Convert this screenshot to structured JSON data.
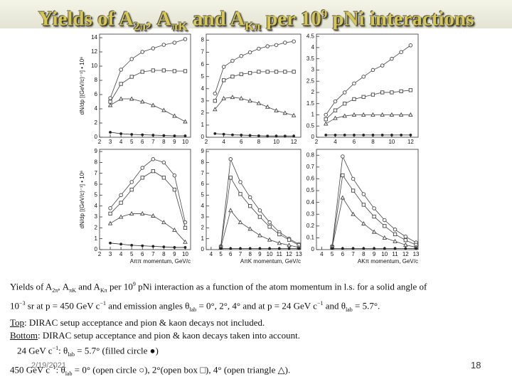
{
  "title": [
    "Yields of A",
    "2π",
    ", A",
    "πK",
    " and A",
    "Kπ",
    " per 10",
    "9",
    " pNi interactions"
  ],
  "chart_data": [
    {
      "type": "line",
      "ylabel": "dN/dp [(GeV/c)⁻¹] • 10⁶",
      "x": [
        3,
        4,
        5,
        6,
        7,
        8,
        9,
        10
      ],
      "xlim": [
        2,
        10.5
      ],
      "xticks": [
        2,
        3,
        4,
        5,
        6,
        7,
        8,
        9,
        10
      ],
      "ylim": [
        0,
        14.5
      ],
      "yticks": [
        0,
        2,
        4,
        6,
        8,
        10,
        12,
        14
      ],
      "series": [
        {
          "marker": "circle",
          "color": "#444",
          "values": [
            5.5,
            9.5,
            11,
            12,
            12.5,
            13,
            13.3,
            13.8
          ]
        },
        {
          "marker": "square",
          "color": "#444",
          "values": [
            5,
            7.5,
            8.5,
            9.2,
            9.4,
            9.4,
            9.3,
            9.3
          ]
        },
        {
          "marker": "triangle",
          "color": "#444",
          "values": [
            4.5,
            5.4,
            5.4,
            5,
            4.5,
            3.8,
            3,
            2.2
          ]
        },
        {
          "marker": "filled",
          "color": "#222",
          "values": [
            0.7,
            0.5,
            0.4,
            0.35,
            0.3,
            0.25,
            0.2,
            0.2
          ]
        }
      ]
    },
    {
      "type": "line",
      "x": [
        3,
        4,
        5,
        6,
        7,
        8,
        9,
        10,
        11,
        12
      ],
      "xlim": [
        2,
        12.8
      ],
      "xticks": [
        2,
        4,
        6,
        8,
        10,
        12
      ],
      "ylim": [
        0,
        8.5
      ],
      "yticks": [
        0,
        1,
        2,
        3,
        4,
        5,
        6,
        7,
        8
      ],
      "series": [
        {
          "marker": "circle",
          "color": "#444",
          "values": [
            3.6,
            5.8,
            6.3,
            6.7,
            7,
            7.3,
            7.5,
            7.6,
            7.8,
            7.9
          ]
        },
        {
          "marker": "square",
          "color": "#444",
          "values": [
            3,
            4.7,
            5,
            5.2,
            5.3,
            5.4,
            5.4,
            5.4,
            5.4,
            5.4
          ]
        },
        {
          "marker": "triangle",
          "color": "#444",
          "values": [
            2.3,
            3.2,
            3.3,
            3.2,
            3,
            2.8,
            2.5,
            2.2,
            2,
            1.8
          ]
        },
        {
          "marker": "filled",
          "color": "#222",
          "values": [
            0.3,
            0.25,
            0.2,
            0.18,
            0.15,
            0.12,
            0.1,
            0.1,
            0.1,
            0.1
          ]
        }
      ]
    },
    {
      "type": "line",
      "x": [
        3,
        4,
        5,
        6,
        7,
        8,
        9,
        10,
        11,
        12
      ],
      "xlim": [
        2,
        12.8
      ],
      "xticks": [
        2,
        4,
        6,
        8,
        10,
        12
      ],
      "ylim": [
        0,
        4.6
      ],
      "yticks": [
        0,
        0.5,
        1,
        1.5,
        2,
        2.5,
        3,
        3.5,
        4,
        4.5
      ],
      "series": [
        {
          "marker": "circle",
          "color": "#444",
          "values": [
            1,
            1.6,
            2,
            2.4,
            2.7,
            3,
            3.2,
            3.5,
            3.8,
            4.1
          ]
        },
        {
          "marker": "square",
          "color": "#444",
          "values": [
            0.8,
            1.2,
            1.5,
            1.7,
            1.8,
            1.9,
            2,
            2,
            2.05,
            2.1
          ]
        },
        {
          "marker": "triangle",
          "color": "#444",
          "values": [
            0.6,
            0.85,
            0.95,
            1,
            1,
            1,
            1,
            1,
            1,
            1
          ]
        },
        {
          "marker": "filled",
          "color": "#222",
          "values": [
            0.1,
            0.1,
            0.1,
            0.1,
            0.1,
            0.1,
            0.1,
            0.1,
            0.1,
            0.1
          ]
        }
      ]
    },
    {
      "type": "line",
      "ylabel": "dN/dp [(GeV/c)⁻¹] • 10⁶",
      "xlabel": "Aππ momentum, GeV/c",
      "x": [
        3,
        4,
        5,
        6,
        7,
        8,
        9,
        10
      ],
      "xlim": [
        2,
        10.5
      ],
      "xticks": [
        2,
        3,
        4,
        5,
        6,
        7,
        8,
        9,
        10
      ],
      "ylim": [
        0,
        9.2
      ],
      "yticks": [
        0,
        1,
        2,
        3,
        4,
        5,
        6,
        7,
        8,
        9
      ],
      "series": [
        {
          "marker": "circle",
          "color": "#444",
          "values": [
            3.8,
            5,
            6.2,
            7.5,
            8.3,
            8,
            6.8,
            2.5
          ]
        },
        {
          "marker": "square",
          "color": "#444",
          "values": [
            3.3,
            4.3,
            5.5,
            6.6,
            7.2,
            6.6,
            5.5,
            2
          ]
        },
        {
          "marker": "triangle",
          "color": "#444",
          "values": [
            2.4,
            3,
            3.3,
            3.3,
            3.1,
            2.5,
            1.8,
            0.7
          ]
        },
        {
          "marker": "filled",
          "color": "#222",
          "values": [
            0.6,
            0.5,
            0.4,
            0.35,
            0.3,
            0.25,
            0.2,
            0.2
          ]
        }
      ]
    },
    {
      "type": "line",
      "xlabel": "AπK momentum, GeV/c",
      "x": [
        5,
        6,
        7,
        8,
        9,
        10,
        11,
        12,
        13
      ],
      "xlim": [
        3.5,
        13.2
      ],
      "xticks": [
        4,
        5,
        6,
        7,
        8,
        9,
        10,
        11,
        12,
        13
      ],
      "ylim": [
        0,
        9.2
      ],
      "yticks": [
        0,
        1,
        2,
        3,
        4,
        5,
        6,
        7,
        8,
        9
      ],
      "series": [
        {
          "marker": "circle",
          "color": "#444",
          "values": [
            0.3,
            8.3,
            6.2,
            4.8,
            3.6,
            2.5,
            1.6,
            1,
            0.5
          ]
        },
        {
          "marker": "square",
          "color": "#444",
          "values": [
            0.25,
            6.6,
            5.1,
            4,
            3,
            2.1,
            1.4,
            0.9,
            0.4
          ]
        },
        {
          "marker": "triangle",
          "color": "#444",
          "values": [
            0.2,
            3.6,
            2.5,
            1.9,
            1.3,
            0.9,
            0.6,
            0.4,
            0.2
          ]
        },
        {
          "marker": "filled",
          "color": "#222",
          "values": [
            0.1,
            0.1,
            0.1,
            0.1,
            0.1,
            0.1,
            0.1,
            0.1,
            0.1
          ]
        }
      ]
    },
    {
      "type": "line",
      "xlabel": "AKπ momentum, GeV/c",
      "x": [
        5,
        6,
        7,
        8,
        9,
        10,
        11,
        12,
        13
      ],
      "xlim": [
        3.5,
        13.2
      ],
      "xticks": [
        4,
        5,
        6,
        7,
        8,
        9,
        10,
        11,
        12,
        13
      ],
      "ylim": [
        0,
        0.85
      ],
      "yticks": [
        0,
        0.1,
        0.2,
        0.3,
        0.4,
        0.5,
        0.6,
        0.7,
        0.8
      ],
      "series": [
        {
          "marker": "circle",
          "color": "#444",
          "values": [
            0.03,
            0.79,
            0.6,
            0.47,
            0.35,
            0.25,
            0.17,
            0.11,
            0.06
          ]
        },
        {
          "marker": "square",
          "color": "#444",
          "values": [
            0.02,
            0.63,
            0.5,
            0.38,
            0.28,
            0.2,
            0.13,
            0.08,
            0.04
          ]
        },
        {
          "marker": "triangle",
          "color": "#444",
          "values": [
            0.02,
            0.44,
            0.3,
            0.22,
            0.15,
            0.1,
            0.07,
            0.04,
            0.02
          ]
        },
        {
          "marker": "filled",
          "color": "#222",
          "values": [
            0.01,
            0.01,
            0.01,
            0.01,
            0.01,
            0.01,
            0.01,
            0.01,
            0.01
          ]
        }
      ]
    }
  ],
  "caption": [
    [
      "Yields of A",
      "2π",
      ", A",
      "πK",
      " and A",
      "Kπ",
      " per 10",
      "9",
      " pNi interaction as a function of the atom momentum in l.s. for a solid angle of"
    ],
    [
      "10",
      "−3",
      " sr at p = 450 GeV c",
      "−1",
      " and emission angles θ",
      "lab",
      " = 0°, 2°, 4° and at p = 24 GeV c",
      "−1",
      " and θ",
      "lab",
      " = 5.7°."
    ],
    [
      "Top",
      ": DIRAC setup acceptance and pion & kaon decays not included."
    ],
    [
      "Bottom",
      ": DIRAC setup acceptance and pion & kaon decays taken into account."
    ],
    [
      "24 GeV c",
      "−1",
      ": θ",
      "lab",
      " = 5.7° (filled circle ●)"
    ],
    [
      "450 GeV c",
      "−1",
      ": θ",
      "lab",
      " = 0° (open circle ○), 2°(open box □), 4° (open triangle △)."
    ]
  ],
  "footer": {
    "date": "2/19/2021",
    "page": "18"
  }
}
